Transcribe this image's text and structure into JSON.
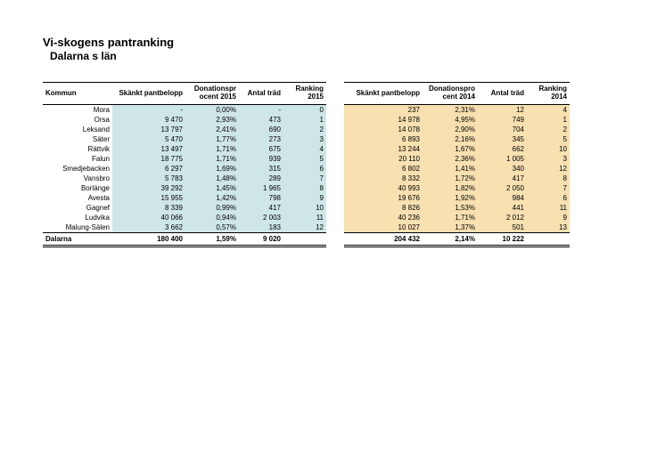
{
  "title": "Vi-skogens pantranking",
  "subtitle": "Dalarna  s län",
  "left": {
    "headers": {
      "kommun": "Kommun",
      "pant": "Skänkt pantbelopp",
      "pct": "Donationspr\nocent 2015",
      "trad": "Antal träd",
      "rank": "Ranking\n2015"
    },
    "rows": [
      {
        "kommun": "Mora",
        "pant": "-",
        "pct": "0,00%",
        "trad": "-",
        "rank": "0"
      },
      {
        "kommun": "Orsa",
        "pant": "9 470",
        "pct": "2,93%",
        "trad": "473",
        "rank": "1"
      },
      {
        "kommun": "Leksand",
        "pant": "13 797",
        "pct": "2,41%",
        "trad": "690",
        "rank": "2"
      },
      {
        "kommun": "Säter",
        "pant": "5 470",
        "pct": "1,77%",
        "trad": "273",
        "rank": "3"
      },
      {
        "kommun": "Rättvik",
        "pant": "13 497",
        "pct": "1,71%",
        "trad": "675",
        "rank": "4"
      },
      {
        "kommun": "Falun",
        "pant": "18 775",
        "pct": "1,71%",
        "trad": "939",
        "rank": "5"
      },
      {
        "kommun": "Smedjebacken",
        "pant": "6 297",
        "pct": "1,69%",
        "trad": "315",
        "rank": "6"
      },
      {
        "kommun": "Vansbro",
        "pant": "5 783",
        "pct": "1,48%",
        "trad": "289",
        "rank": "7"
      },
      {
        "kommun": "Borlänge",
        "pant": "39 292",
        "pct": "1,45%",
        "trad": "1 965",
        "rank": "8"
      },
      {
        "kommun": "Avesta",
        "pant": "15 955",
        "pct": "1,42%",
        "trad": "798",
        "rank": "9"
      },
      {
        "kommun": "Gagnef",
        "pant": "8 339",
        "pct": "0,99%",
        "trad": "417",
        "rank": "10"
      },
      {
        "kommun": "Ludvika",
        "pant": "40 066",
        "pct": "0,94%",
        "trad": "2 003",
        "rank": "11"
      },
      {
        "kommun": "Malung-Sälen",
        "pant": "3 662",
        "pct": "0,57%",
        "trad": "183",
        "rank": "12"
      }
    ],
    "total": {
      "label": "Dalarna",
      "pant": "180 400",
      "pct": "1,59%",
      "trad": "9 020",
      "rank": ""
    }
  },
  "right": {
    "headers": {
      "pant": "Skänkt pantbelopp",
      "pct": "Donationspro\ncent 2014",
      "trad": "Antal träd",
      "rank": "Ranking\n2014"
    },
    "rows": [
      {
        "pant": "237",
        "pct": "2,31%",
        "trad": "12",
        "rank": "4"
      },
      {
        "pant": "14 978",
        "pct": "4,95%",
        "trad": "749",
        "rank": "1"
      },
      {
        "pant": "14 078",
        "pct": "2,90%",
        "trad": "704",
        "rank": "2"
      },
      {
        "pant": "6 893",
        "pct": "2,16%",
        "trad": "345",
        "rank": "5"
      },
      {
        "pant": "13 244",
        "pct": "1,67%",
        "trad": "662",
        "rank": "10"
      },
      {
        "pant": "20 110",
        "pct": "2,36%",
        "trad": "1 005",
        "rank": "3"
      },
      {
        "pant": "6 802",
        "pct": "1,41%",
        "trad": "340",
        "rank": "12"
      },
      {
        "pant": "8 332",
        "pct": "1,72%",
        "trad": "417",
        "rank": "8"
      },
      {
        "pant": "40 993",
        "pct": "1,82%",
        "trad": "2 050",
        "rank": "7"
      },
      {
        "pant": "19 676",
        "pct": "1,92%",
        "trad": "984",
        "rank": "6"
      },
      {
        "pant": "8 826",
        "pct": "1,53%",
        "trad": "441",
        "rank": "11"
      },
      {
        "pant": "40 236",
        "pct": "1,71%",
        "trad": "2 012",
        "rank": "9"
      },
      {
        "pant": "10 027",
        "pct": "1,37%",
        "trad": "501",
        "rank": "13"
      }
    ],
    "total": {
      "pant": "204 432",
      "pct": "2,14%",
      "trad": "10 222",
      "rank": ""
    }
  }
}
